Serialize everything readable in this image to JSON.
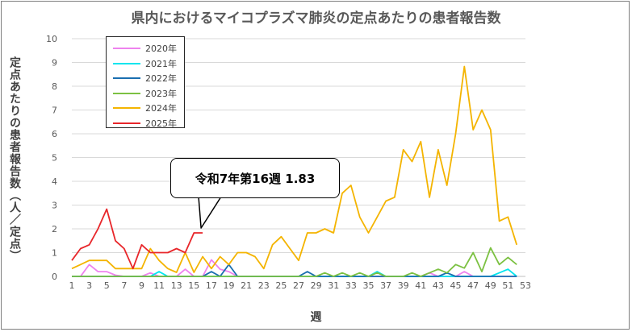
{
  "chart_data": {
    "type": "line",
    "title": "県内におけるマイコプラズマ肺炎の定点あたりの患者報告数",
    "xlabel": "週",
    "ylabel": "定点あたりの患者報告数（人／定点）",
    "xlim": [
      1,
      53
    ],
    "ylim": [
      0,
      10
    ],
    "x_ticks": [
      1,
      3,
      5,
      7,
      9,
      11,
      13,
      15,
      17,
      19,
      21,
      23,
      25,
      27,
      29,
      31,
      33,
      35,
      37,
      39,
      41,
      43,
      45,
      47,
      49,
      51,
      53
    ],
    "y_ticks": [
      0,
      1,
      2,
      3,
      4,
      5,
      6,
      7,
      8,
      9,
      10
    ],
    "grid": "horizontal",
    "legend_position": "top-left",
    "series": [
      {
        "name": "2020年",
        "color": "#ee82ee",
        "x": [
          1,
          2,
          3,
          4,
          5,
          6,
          7,
          8,
          9,
          10,
          11,
          12,
          13,
          14,
          15,
          16,
          17,
          18,
          19,
          20,
          21,
          22,
          23,
          24,
          25,
          26,
          27,
          28,
          29,
          30,
          31,
          32,
          33,
          34,
          35,
          36,
          37,
          38,
          39,
          40,
          41,
          42,
          43,
          44,
          45,
          46,
          47,
          48,
          49,
          50,
          51,
          52
        ],
        "values": [
          0,
          0,
          0.5,
          0.2,
          0.2,
          0.05,
          0,
          0,
          0,
          0.15,
          0,
          0,
          0,
          0.3,
          0,
          0,
          0.7,
          0.3,
          0.2,
          0,
          0,
          0,
          0,
          0,
          0,
          0,
          0,
          0,
          0,
          0,
          0,
          0,
          0,
          0,
          0,
          0,
          0,
          0,
          0,
          0,
          0,
          0.15,
          0,
          0,
          0,
          0.2,
          0,
          0,
          0,
          0,
          0,
          0
        ]
      },
      {
        "name": "2021年",
        "color": "#00e5ee",
        "x": [
          1,
          2,
          3,
          4,
          5,
          6,
          7,
          8,
          9,
          10,
          11,
          12,
          13,
          14,
          15,
          16,
          17,
          18,
          19,
          20,
          21,
          22,
          23,
          24,
          25,
          26,
          27,
          28,
          29,
          30,
          31,
          32,
          33,
          34,
          35,
          36,
          37,
          38,
          39,
          40,
          41,
          42,
          43,
          44,
          45,
          46,
          47,
          48,
          49,
          50,
          51,
          52
        ],
        "values": [
          0,
          0,
          0,
          0,
          0,
          0,
          0,
          0,
          0,
          0,
          0.2,
          0,
          0,
          0,
          0,
          0,
          0,
          0,
          0,
          0,
          0,
          0,
          0,
          0,
          0,
          0,
          0,
          0,
          0,
          0,
          0,
          0,
          0,
          0,
          0,
          0.2,
          0,
          0,
          0,
          0,
          0,
          0,
          0,
          0,
          0,
          0,
          0,
          0,
          0,
          0.15,
          0.3,
          0
        ]
      },
      {
        "name": "2022年",
        "color": "#1a6fb0",
        "x": [
          1,
          2,
          3,
          4,
          5,
          6,
          7,
          8,
          9,
          10,
          11,
          12,
          13,
          14,
          15,
          16,
          17,
          18,
          19,
          20,
          21,
          22,
          23,
          24,
          25,
          26,
          27,
          28,
          29,
          30,
          31,
          32,
          33,
          34,
          35,
          36,
          37,
          38,
          39,
          40,
          41,
          42,
          43,
          44,
          45,
          46,
          47,
          48,
          49,
          50,
          51,
          52
        ],
        "values": [
          0,
          0,
          0,
          0,
          0,
          0,
          0,
          0,
          0,
          0,
          0,
          0,
          0,
          0,
          0,
          0,
          0.2,
          0,
          0.5,
          0,
          0,
          0,
          0,
          0,
          0,
          0,
          0,
          0.2,
          0,
          0,
          0,
          0,
          0,
          0,
          0,
          0,
          0,
          0,
          0,
          0,
          0,
          0,
          0,
          0.15,
          0,
          0,
          0,
          0,
          0,
          0,
          0,
          0
        ]
      },
      {
        "name": "2023年",
        "color": "#7cc142",
        "x": [
          1,
          2,
          3,
          4,
          5,
          6,
          7,
          8,
          9,
          10,
          11,
          12,
          13,
          14,
          15,
          16,
          17,
          18,
          19,
          20,
          21,
          22,
          23,
          24,
          25,
          26,
          27,
          28,
          29,
          30,
          31,
          32,
          33,
          34,
          35,
          36,
          37,
          38,
          39,
          40,
          41,
          42,
          43,
          44,
          45,
          46,
          47,
          48,
          49,
          50,
          51,
          52
        ],
        "values": [
          0,
          0,
          0,
          0,
          0,
          0,
          0,
          0,
          0,
          0,
          0,
          0,
          0,
          0,
          0,
          0,
          0,
          0,
          0,
          0,
          0,
          0,
          0,
          0,
          0,
          0,
          0,
          0,
          0,
          0.15,
          0,
          0.15,
          0,
          0.15,
          0,
          0.15,
          0,
          0,
          0,
          0.15,
          0,
          0.15,
          0.3,
          0.15,
          0.5,
          0.35,
          1,
          0.2,
          1.2,
          0.5,
          0.8,
          0.5
        ]
      },
      {
        "name": "2024年",
        "color": "#f4b400",
        "x": [
          1,
          2,
          3,
          4,
          5,
          6,
          7,
          8,
          9,
          10,
          11,
          12,
          13,
          14,
          15,
          16,
          17,
          18,
          19,
          20,
          21,
          22,
          23,
          24,
          25,
          26,
          27,
          28,
          29,
          30,
          31,
          32,
          33,
          34,
          35,
          36,
          37,
          38,
          39,
          40,
          41,
          42,
          43,
          44,
          45,
          46,
          47,
          48,
          49,
          50,
          51,
          52
        ],
        "values": [
          0.33,
          0.5,
          0.67,
          0.67,
          0.67,
          0.33,
          0.33,
          0.33,
          0.33,
          1.17,
          0.67,
          0.33,
          0.17,
          1,
          0.17,
          0.83,
          0.33,
          0.83,
          0.5,
          1,
          1,
          0.83,
          0.33,
          1.33,
          1.67,
          1.17,
          0.67,
          1.83,
          1.83,
          2,
          1.83,
          3.5,
          3.83,
          2.5,
          1.83,
          2.5,
          3.17,
          3.33,
          5.33,
          4.83,
          5.67,
          3.33,
          5.33,
          3.83,
          6,
          8.83,
          6.17,
          7,
          6.17,
          2.33,
          2.5,
          1.33
        ]
      },
      {
        "name": "2025年",
        "color": "#e8262a",
        "x": [
          1,
          2,
          3,
          4,
          5,
          6,
          7,
          8,
          9,
          10,
          11,
          12,
          13,
          14,
          15,
          16
        ],
        "values": [
          0.67,
          1.17,
          1.33,
          2.0,
          2.83,
          1.5,
          1.17,
          0.33,
          1.33,
          1.0,
          1.0,
          1.0,
          1.17,
          1.0,
          1.83,
          1.83
        ]
      }
    ],
    "annotation": {
      "text": "令和7年第16週  1.83",
      "x": 16,
      "y": 1.83
    }
  }
}
